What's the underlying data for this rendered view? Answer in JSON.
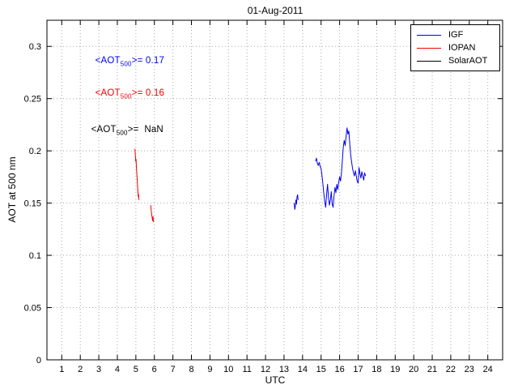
{
  "chart_data": {
    "type": "line",
    "title": "01-Aug-2011",
    "xlabel": "UTC",
    "ylabel": "AOT at 500 nm",
    "xlim": [
      0.2,
      24.8
    ],
    "ylim": [
      0,
      0.325
    ],
    "xticks": [
      1,
      2,
      3,
      4,
      5,
      6,
      7,
      8,
      9,
      10,
      11,
      12,
      13,
      14,
      15,
      16,
      17,
      18,
      19,
      20,
      21,
      22,
      23,
      24
    ],
    "yticks": [
      0,
      0.05,
      0.1,
      0.15,
      0.2,
      0.25,
      0.3
    ],
    "ytick_labels": [
      "0",
      "0.05",
      "0.1",
      "0.15",
      "0.2",
      "0.25",
      "0.3"
    ],
    "grid": true,
    "legend_position": "top-right",
    "series": [
      {
        "name": "IGF",
        "color": "#0000ee",
        "segments": [
          [
            [
              13.55,
              0.15
            ],
            [
              13.58,
              0.144
            ],
            [
              13.61,
              0.147
            ],
            [
              13.64,
              0.153
            ],
            [
              13.67,
              0.149
            ],
            [
              13.7,
              0.156
            ],
            [
              13.73,
              0.158
            ],
            [
              13.76,
              0.153
            ]
          ],
          [
            [
              14.7,
              0.19
            ],
            [
              14.75,
              0.193
            ],
            [
              14.8,
              0.188
            ],
            [
              14.85,
              0.186
            ],
            [
              14.9,
              0.189
            ],
            [
              14.95,
              0.185
            ],
            [
              15.0,
              0.183
            ],
            [
              15.05,
              0.176
            ],
            [
              15.1,
              0.168
            ],
            [
              15.15,
              0.159
            ],
            [
              15.2,
              0.151
            ],
            [
              15.25,
              0.146
            ],
            [
              15.3,
              0.159
            ],
            [
              15.35,
              0.168
            ],
            [
              15.4,
              0.155
            ],
            [
              15.45,
              0.148
            ],
            [
              15.5,
              0.153
            ],
            [
              15.55,
              0.161
            ],
            [
              15.6,
              0.149
            ],
            [
              15.65,
              0.146
            ],
            [
              15.7,
              0.157
            ],
            [
              15.75,
              0.165
            ],
            [
              15.8,
              0.16
            ],
            [
              15.85,
              0.168
            ],
            [
              15.9,
              0.163
            ],
            [
              15.95,
              0.17
            ],
            [
              16.0,
              0.175
            ],
            [
              16.05,
              0.171
            ],
            [
              16.1,
              0.179
            ],
            [
              16.15,
              0.191
            ],
            [
              16.2,
              0.204
            ],
            [
              16.25,
              0.21
            ],
            [
              16.3,
              0.205
            ],
            [
              16.35,
              0.214
            ],
            [
              16.4,
              0.222
            ],
            [
              16.45,
              0.216
            ],
            [
              16.5,
              0.219
            ],
            [
              16.55,
              0.206
            ],
            [
              16.6,
              0.196
            ],
            [
              16.65,
              0.189
            ],
            [
              16.7,
              0.183
            ],
            [
              16.75,
              0.179
            ],
            [
              16.8,
              0.176
            ],
            [
              16.85,
              0.181
            ],
            [
              16.9,
              0.176
            ],
            [
              16.95,
              0.171
            ],
            [
              17.0,
              0.169
            ],
            [
              17.05,
              0.184
            ],
            [
              17.1,
              0.178
            ],
            [
              17.15,
              0.174
            ],
            [
              17.2,
              0.18
            ],
            [
              17.25,
              0.176
            ],
            [
              17.3,
              0.172
            ],
            [
              17.35,
              0.179
            ],
            [
              17.4,
              0.176
            ]
          ]
        ]
      },
      {
        "name": "IOPAN",
        "color": "#ee0000",
        "segments": [
          [
            [
              4.95,
              0.202
            ],
            [
              4.97,
              0.196
            ],
            [
              4.99,
              0.19
            ],
            [
              5.01,
              0.192
            ],
            [
              5.03,
              0.185
            ],
            [
              5.05,
              0.179
            ],
            [
              5.07,
              0.173
            ],
            [
              5.09,
              0.167
            ],
            [
              5.11,
              0.161
            ],
            [
              5.13,
              0.156
            ],
            [
              5.15,
              0.158
            ],
            [
              5.17,
              0.153
            ]
          ],
          [
            [
              5.8,
              0.148
            ],
            [
              5.83,
              0.143
            ],
            [
              5.86,
              0.139
            ],
            [
              5.89,
              0.135
            ],
            [
              5.91,
              0.133
            ],
            [
              5.93,
              0.137
            ],
            [
              5.95,
              0.132
            ]
          ]
        ]
      },
      {
        "name": "SolarAOT",
        "color": "#000000",
        "segments": []
      }
    ],
    "annotations": [
      {
        "pre": "<AOT",
        "sub": "500",
        "post": ">= 0.17",
        "color": "#0000ee"
      },
      {
        "pre": "<AOT",
        "sub": "500",
        "post": ">= 0.16",
        "color": "#ee0000"
      },
      {
        "pre": "<AOT",
        "sub": "500",
        "post": ">=  NaN",
        "color": "#000000"
      }
    ]
  }
}
